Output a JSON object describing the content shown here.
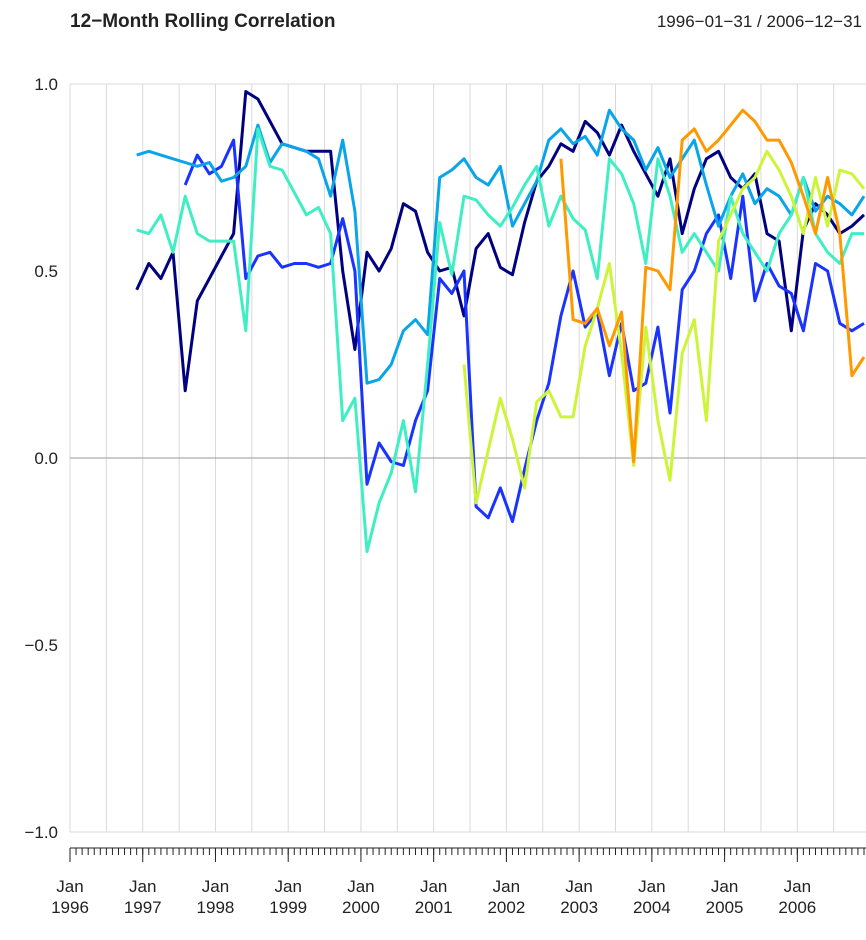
{
  "chart_data": {
    "type": "line",
    "title": "12−Month Rolling Correlation",
    "subtitle": "1996−01−31 / 2006−12−31",
    "x": [
      "1996-12",
      "1997-02",
      "1997-04",
      "1997-06",
      "1997-08",
      "1997-10",
      "1997-12",
      "1998-02",
      "1998-04",
      "1998-06",
      "1998-08",
      "1998-10",
      "1998-12",
      "1999-02",
      "1999-04",
      "1999-06",
      "1999-08",
      "1999-10",
      "1999-12",
      "2000-02",
      "2000-04",
      "2000-06",
      "2000-08",
      "2000-10",
      "2000-12",
      "2001-02",
      "2001-04",
      "2001-06",
      "2001-08",
      "2001-10",
      "2001-12",
      "2002-02",
      "2002-04",
      "2002-06",
      "2002-08",
      "2002-10",
      "2002-12",
      "2003-02",
      "2003-04",
      "2003-06",
      "2003-08",
      "2003-10",
      "2003-12",
      "2004-02",
      "2004-04",
      "2004-06",
      "2004-08",
      "2004-10",
      "2004-12",
      "2005-02",
      "2005-04",
      "2005-06",
      "2005-08",
      "2005-10",
      "2005-12",
      "2006-02",
      "2006-04",
      "2006-06",
      "2006-08",
      "2006-10",
      "2006-12"
    ],
    "series": [
      {
        "color": "#000080",
        "values": [
          0.45,
          0.52,
          0.48,
          0.55,
          0.18,
          0.42,
          0.48,
          0.54,
          0.6,
          0.98,
          0.96,
          0.9,
          0.84,
          0.83,
          0.82,
          0.82,
          0.82,
          0.5,
          0.29,
          0.55,
          0.5,
          0.56,
          0.68,
          0.66,
          0.55,
          0.5,
          0.51,
          0.38,
          0.56,
          0.6,
          0.51,
          0.49,
          0.63,
          0.74,
          0.78,
          0.84,
          0.82,
          0.9,
          0.87,
          0.81,
          0.89,
          0.82,
          0.76,
          0.7,
          0.8,
          0.6,
          0.72,
          0.8,
          0.82,
          0.75,
          0.72,
          0.76,
          0.6,
          0.58,
          0.34,
          0.61,
          0.68,
          0.65,
          0.6,
          0.62,
          0.65
        ]
      },
      {
        "color": "#1a33ff",
        "values": [
          null,
          null,
          null,
          null,
          0.73,
          0.81,
          0.76,
          0.78,
          0.85,
          0.48,
          0.54,
          0.55,
          0.51,
          0.52,
          0.52,
          0.51,
          0.52,
          0.64,
          0.5,
          -0.07,
          0.04,
          -0.01,
          -0.02,
          0.1,
          0.18,
          0.48,
          0.44,
          0.5,
          -0.13,
          -0.16,
          -0.08,
          -0.17,
          -0.03,
          0.1,
          0.2,
          0.38,
          0.5,
          0.35,
          0.39,
          0.22,
          0.36,
          0.18,
          0.2,
          0.35,
          0.12,
          0.45,
          0.5,
          0.6,
          0.65,
          0.48,
          0.7,
          0.42,
          0.52,
          0.46,
          0.44,
          0.34,
          0.52,
          0.5,
          0.36,
          0.34,
          0.36
        ]
      },
      {
        "color": "#0aa5e8",
        "values": [
          0.81,
          0.82,
          0.81,
          0.8,
          0.79,
          0.78,
          0.79,
          0.74,
          0.75,
          0.78,
          0.89,
          0.79,
          0.84,
          0.83,
          0.82,
          0.8,
          0.7,
          0.85,
          0.66,
          0.2,
          0.21,
          0.25,
          0.34,
          0.37,
          0.33,
          0.75,
          0.77,
          0.8,
          0.75,
          0.73,
          0.78,
          0.62,
          0.68,
          0.74,
          0.85,
          0.88,
          0.84,
          0.86,
          0.81,
          0.93,
          0.88,
          0.85,
          0.77,
          0.83,
          0.75,
          0.8,
          0.85,
          0.73,
          0.62,
          0.7,
          0.76,
          0.68,
          0.72,
          0.7,
          0.65,
          0.75,
          0.66,
          0.7,
          0.68,
          0.65,
          0.7
        ]
      },
      {
        "color": "#40eec4",
        "values": [
          0.61,
          0.6,
          0.65,
          0.55,
          0.7,
          0.6,
          0.58,
          0.58,
          0.58,
          0.34,
          0.88,
          0.78,
          0.77,
          0.71,
          0.65,
          0.67,
          0.6,
          0.1,
          0.16,
          -0.25,
          -0.12,
          -0.04,
          0.1,
          -0.09,
          0.25,
          0.63,
          0.49,
          0.7,
          0.69,
          0.65,
          0.62,
          0.67,
          0.73,
          0.78,
          0.62,
          0.7,
          0.64,
          0.61,
          0.48,
          0.8,
          0.76,
          0.68,
          0.52,
          0.8,
          0.7,
          0.55,
          0.6,
          0.55,
          0.5,
          0.7,
          0.6,
          0.55,
          0.5,
          0.6,
          0.65,
          0.75,
          0.6,
          0.55,
          0.52,
          0.6,
          0.6
        ]
      },
      {
        "color": "#ccf53a",
        "values": [
          null,
          null,
          null,
          null,
          null,
          null,
          null,
          null,
          null,
          null,
          null,
          null,
          null,
          null,
          null,
          null,
          null,
          null,
          null,
          null,
          null,
          null,
          null,
          null,
          null,
          null,
          null,
          0.25,
          -0.12,
          0.02,
          0.16,
          0.05,
          -0.08,
          0.15,
          0.18,
          0.11,
          0.11,
          0.3,
          0.4,
          0.52,
          0.28,
          -0.02,
          0.35,
          0.1,
          -0.06,
          0.28,
          0.37,
          0.1,
          0.58,
          0.65,
          0.72,
          0.75,
          0.82,
          0.77,
          0.7,
          0.6,
          0.75,
          0.62,
          0.77,
          0.76,
          0.72
        ]
      },
      {
        "color": "#ff9900",
        "values": [
          null,
          null,
          null,
          null,
          null,
          null,
          null,
          null,
          null,
          null,
          null,
          null,
          null,
          null,
          null,
          null,
          null,
          null,
          null,
          null,
          null,
          null,
          null,
          null,
          null,
          null,
          null,
          null,
          null,
          null,
          null,
          null,
          null,
          null,
          null,
          0.8,
          0.37,
          0.36,
          0.4,
          0.3,
          0.39,
          -0.01,
          0.51,
          0.5,
          0.45,
          0.85,
          0.88,
          0.82,
          0.85,
          0.89,
          0.93,
          0.9,
          0.85,
          0.85,
          0.79,
          0.7,
          0.6,
          0.75,
          0.6,
          0.22,
          0.27
        ]
      }
    ],
    "xlim": [
      "1996-01",
      "2006-12"
    ],
    "xticks": [
      {
        "value": "1996-01",
        "label": "Jan 1996"
      },
      {
        "value": "1997-01",
        "label": "Jan 1997"
      },
      {
        "value": "1998-01",
        "label": "Jan 1998"
      },
      {
        "value": "1999-01",
        "label": "Jan 1999"
      },
      {
        "value": "2000-01",
        "label": "Jan 2000"
      },
      {
        "value": "2001-01",
        "label": "Jan 2001"
      },
      {
        "value": "2002-01",
        "label": "Jan 2002"
      },
      {
        "value": "2003-01",
        "label": "Jan 2003"
      },
      {
        "value": "2004-01",
        "label": "Jan 2004"
      },
      {
        "value": "2005-01",
        "label": "Jan 2005"
      },
      {
        "value": "2006-01",
        "label": "Jan 2006"
      }
    ],
    "ylim": [
      -1,
      1
    ],
    "yticks": [
      {
        "value": -1,
        "label": "−1.0"
      },
      {
        "value": -0.5,
        "label": "−0.5"
      },
      {
        "value": 0,
        "label": "0.0"
      },
      {
        "value": 0.5,
        "label": "0.5"
      },
      {
        "value": 1,
        "label": "1.0"
      }
    ],
    "grid": true
  }
}
